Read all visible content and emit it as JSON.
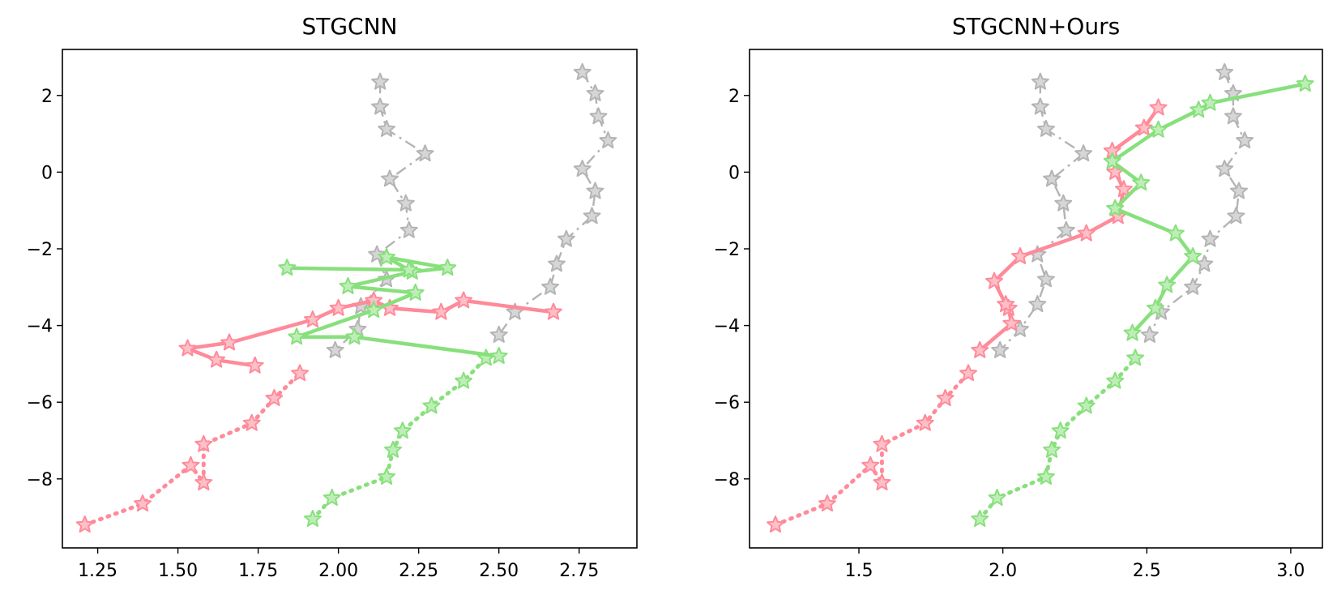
{
  "chart_data": [
    {
      "type": "line",
      "title": "STGCNN",
      "xlabel": "",
      "ylabel": "",
      "xlim": [
        1.14,
        2.93
      ],
      "ylim": [
        -9.8,
        3.2
      ],
      "xticks": [
        1.25,
        1.5,
        1.75,
        2.0,
        2.25,
        2.5,
        2.75
      ],
      "xtick_labels": [
        "1.25",
        "1.50",
        "1.75",
        "2.00",
        "2.25",
        "2.50",
        "2.75"
      ],
      "yticks": [
        2,
        0,
        -2,
        -4,
        -6,
        -8
      ],
      "ytick_labels": [
        "2",
        "0",
        "−2",
        "−4",
        "−6",
        "−8"
      ],
      "grid": false,
      "series": [
        {
          "role": "neighbor-a",
          "style": "dashdot",
          "color": "#b4b4b4",
          "x": [
            2.13,
            2.13,
            2.15,
            2.27,
            2.16,
            2.21,
            2.22,
            2.12,
            2.15,
            2.07,
            2.06,
            1.99
          ],
          "y": [
            2.35,
            1.7,
            1.12,
            0.48,
            -0.18,
            -0.82,
            -1.52,
            -2.15,
            -2.8,
            -3.5,
            -4.1,
            -4.65
          ]
        },
        {
          "role": "neighbor-b",
          "style": "dashdot",
          "color": "#b4b4b4",
          "x": [
            2.76,
            2.8,
            2.81,
            2.84,
            2.76,
            2.8,
            2.79,
            2.71,
            2.68,
            2.66,
            2.55,
            2.5
          ],
          "y": [
            2.6,
            2.05,
            1.45,
            0.82,
            0.08,
            -0.5,
            -1.15,
            -1.75,
            -2.4,
            -3.0,
            -3.65,
            -4.25
          ]
        },
        {
          "role": "target-a-observed",
          "style": "dotted",
          "color": "#ff8a99",
          "x": [
            1.21,
            1.39,
            1.54,
            1.58,
            1.58,
            1.73,
            1.8,
            1.88
          ],
          "y": [
            -9.2,
            -8.65,
            -7.65,
            -8.1,
            -7.1,
            -6.55,
            -5.9,
            -5.25
          ]
        },
        {
          "role": "target-a-predicted",
          "style": "solid",
          "color": "#ff8a99",
          "x": [
            1.74,
            1.62,
            1.53,
            1.66,
            1.92,
            2.0,
            2.11,
            2.16,
            2.32,
            2.39,
            2.67
          ],
          "y": [
            -5.05,
            -4.9,
            -4.6,
            -4.45,
            -3.85,
            -3.55,
            -3.35,
            -3.55,
            -3.65,
            -3.35,
            -3.65
          ]
        },
        {
          "role": "target-b-observed",
          "style": "dotted",
          "color": "#88e07c",
          "x": [
            1.92,
            1.98,
            2.15,
            2.17,
            2.2,
            2.29,
            2.39,
            2.46
          ],
          "y": [
            -9.05,
            -8.5,
            -7.95,
            -7.25,
            -6.75,
            -6.1,
            -5.45,
            -4.85
          ]
        },
        {
          "role": "target-b-predicted",
          "style": "solid",
          "color": "#88e07c",
          "x": [
            2.5,
            2.05,
            1.87,
            2.11,
            2.24,
            2.03,
            2.23,
            2.34,
            2.15,
            2.22,
            1.84
          ],
          "y": [
            -4.8,
            -4.3,
            -4.3,
            -3.6,
            -3.15,
            -2.98,
            -2.6,
            -2.5,
            -2.22,
            -2.55,
            -2.5
          ]
        }
      ]
    },
    {
      "type": "line",
      "title": "STGCNN+Ours",
      "xlabel": "",
      "ylabel": "",
      "xlim": [
        1.12,
        3.11
      ],
      "ylim": [
        -9.8,
        3.2
      ],
      "xticks": [
        1.5,
        2.0,
        2.5,
        3.0
      ],
      "xtick_labels": [
        "1.5",
        "2.0",
        "2.5",
        "3.0"
      ],
      "yticks": [
        2,
        0,
        -2,
        -4,
        -6,
        -8
      ],
      "ytick_labels": [
        "2",
        "0",
        "−2",
        "−4",
        "−6",
        "−8"
      ],
      "grid": false,
      "series": [
        {
          "role": "neighbor-a",
          "style": "dashdot",
          "color": "#b4b4b4",
          "x": [
            2.13,
            2.13,
            2.15,
            2.28,
            2.17,
            2.21,
            2.22,
            2.12,
            2.15,
            2.12,
            2.06,
            1.99
          ],
          "y": [
            2.35,
            1.7,
            1.12,
            0.48,
            -0.18,
            -0.82,
            -1.52,
            -2.15,
            -2.8,
            -3.45,
            -4.1,
            -4.65
          ]
        },
        {
          "role": "neighbor-b",
          "style": "dashdot",
          "color": "#b4b4b4",
          "x": [
            2.77,
            2.8,
            2.8,
            2.84,
            2.77,
            2.82,
            2.81,
            2.72,
            2.7,
            2.66,
            2.55,
            2.51
          ],
          "y": [
            2.6,
            2.05,
            1.45,
            0.82,
            0.08,
            -0.5,
            -1.15,
            -1.75,
            -2.4,
            -3.0,
            -3.65,
            -4.25
          ]
        },
        {
          "role": "target-a-observed",
          "style": "dotted",
          "color": "#ff8a99",
          "x": [
            1.21,
            1.39,
            1.54,
            1.58,
            1.58,
            1.73,
            1.8,
            1.88
          ],
          "y": [
            -9.2,
            -8.65,
            -7.65,
            -8.1,
            -7.1,
            -6.55,
            -5.9,
            -5.25
          ]
        },
        {
          "role": "target-a-predicted",
          "style": "solid",
          "color": "#ff8a99",
          "x": [
            1.92,
            2.03,
            2.02,
            2.01,
            1.97,
            2.06,
            2.29,
            2.4,
            2.42,
            2.39,
            2.38,
            2.49,
            2.54
          ],
          "y": [
            -4.65,
            -3.95,
            -3.55,
            -3.45,
            -2.85,
            -2.2,
            -1.6,
            -1.15,
            -0.45,
            0.0,
            0.55,
            1.15,
            1.68
          ]
        },
        {
          "role": "target-b-observed",
          "style": "dotted",
          "color": "#88e07c",
          "x": [
            1.92,
            1.98,
            2.15,
            2.17,
            2.2,
            2.29,
            2.39,
            2.46
          ],
          "y": [
            -9.05,
            -8.5,
            -7.95,
            -7.25,
            -6.75,
            -6.1,
            -5.45,
            -4.85
          ]
        },
        {
          "role": "target-b-predicted",
          "style": "solid",
          "color": "#88e07c",
          "x": [
            2.45,
            2.53,
            2.57,
            2.66,
            2.6,
            2.39,
            2.48,
            2.38,
            2.54,
            2.68,
            2.72,
            3.05
          ],
          "y": [
            -4.2,
            -3.55,
            -2.95,
            -2.2,
            -1.6,
            -0.95,
            -0.28,
            0.28,
            1.1,
            1.62,
            1.8,
            2.3
          ]
        }
      ]
    }
  ]
}
